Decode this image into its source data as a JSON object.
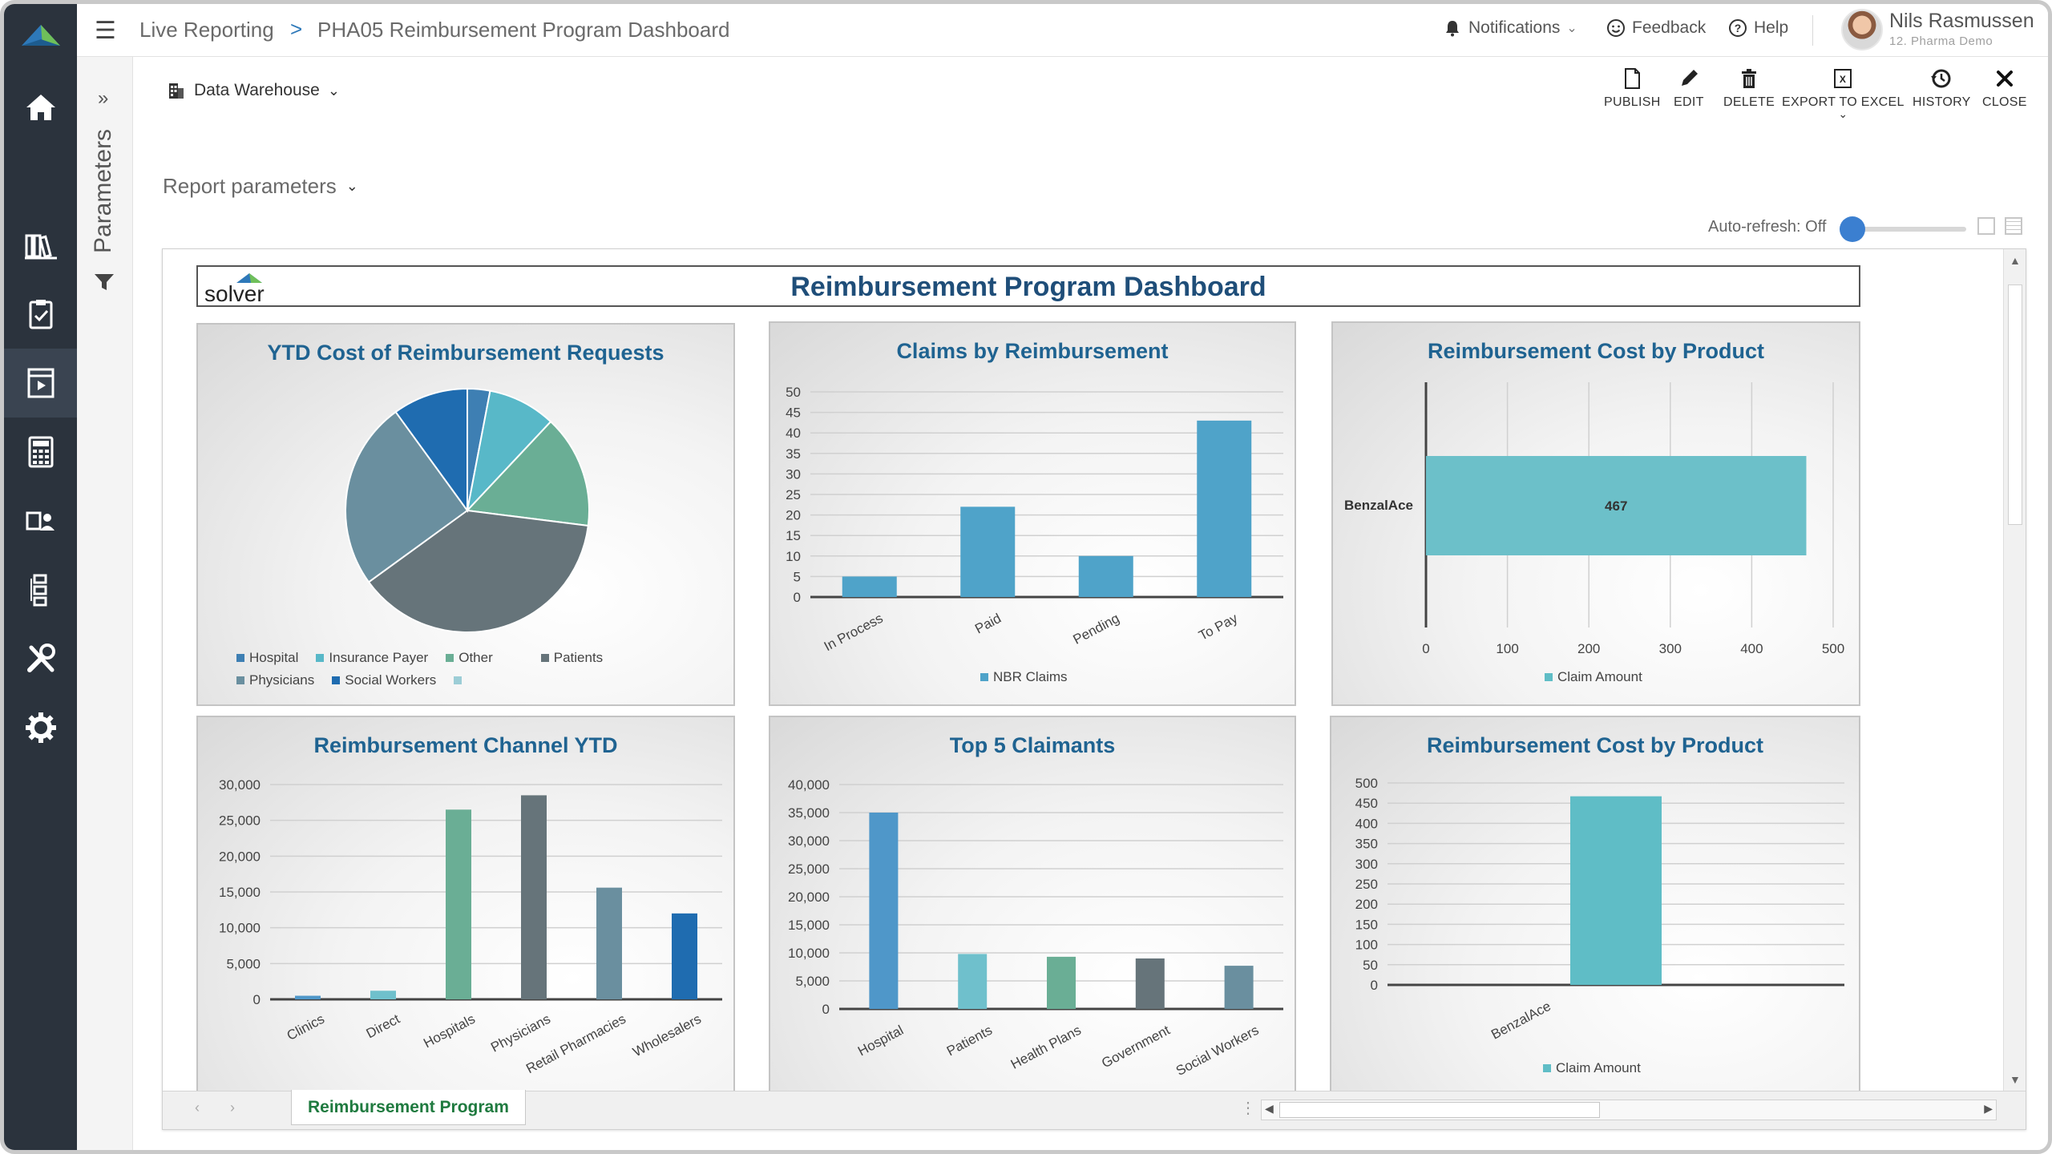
{
  "app": {
    "breadcrumb": [
      "Live Reporting",
      "PHA05 Reimbursement Program Dashboard"
    ],
    "breadcrumb_sep": ">",
    "notifications": "Notifications",
    "feedback": "Feedback",
    "help": "Help",
    "user_name": "Nils Rasmussen",
    "user_sub": "12. Pharma Demo"
  },
  "parameters": {
    "label": "Parameters"
  },
  "toolbar": {
    "data_source": "Data Warehouse",
    "publish": "PUBLISH",
    "edit": "EDIT",
    "delete": "DELETE",
    "export": "EXPORT TO EXCEL",
    "history": "HISTORY",
    "close": "CLOSE"
  },
  "report": {
    "params_label": "Report parameters",
    "autorefresh": "Auto-refresh: Off",
    "dashboard_title": "Reimbursement Program Dashboard",
    "logo_text": "solver",
    "sheet_tab": "Reimbursement Program"
  },
  "colors": {
    "nav_bg": "#2b333d",
    "accent_blue": "#2e79b9",
    "title_blue": "#1f4e79",
    "panel_title": "#1f6391",
    "sheet_green": "#1f7a3f"
  },
  "chart_data": [
    {
      "type": "pie",
      "title": "YTD Cost of Reimbursement Requests",
      "slices": [
        {
          "label": "Hospital",
          "value": 3,
          "color": "#3e7fb3"
        },
        {
          "label": "Insurance Payer",
          "value": 9,
          "color": "#58b8c8"
        },
        {
          "label": "Other",
          "value": 15,
          "color": "#6aae95"
        },
        {
          "label": "Patients",
          "value": 38,
          "color": "#66747a"
        },
        {
          "label": "Physicians",
          "value": 25,
          "color": "#6a8f9f"
        },
        {
          "label": "Social Workers",
          "value": 10,
          "color": "#1f6cb0"
        }
      ]
    },
    {
      "type": "bar",
      "title": "Claims by Reimbursement",
      "categories": [
        "In Process",
        "Paid",
        "Pending",
        "To Pay"
      ],
      "series": [
        {
          "name": "NBR Claims",
          "values": [
            5,
            22,
            10,
            43
          ]
        }
      ],
      "ylim": [
        0,
        50
      ],
      "yticks": [
        "0",
        "5",
        "10",
        "15",
        "20",
        "25",
        "30",
        "35",
        "40",
        "45",
        "50"
      ]
    },
    {
      "type": "bar",
      "orientation": "horizontal",
      "title": "Reimbursement Cost by Product",
      "categories": [
        "BenzalAce"
      ],
      "series": [
        {
          "name": "Claim Amount",
          "values": [
            467
          ]
        }
      ],
      "data_label": "467",
      "xlim": [
        0,
        500
      ],
      "xticks": [
        "0",
        "100",
        "200",
        "300",
        "400",
        "500"
      ]
    },
    {
      "type": "bar",
      "title": "Reimbursement Channel YTD",
      "categories": [
        "Clinics",
        "Direct",
        "Hospitals",
        "Physicians",
        "Retail Pharmacies",
        "Wholesalers"
      ],
      "values": [
        500,
        1200,
        26500,
        28500,
        15600,
        12000
      ],
      "colors": [
        "#4f97c9",
        "#6fc0cc",
        "#6aae95",
        "#66747a",
        "#6a8f9f",
        "#1f6cb0"
      ],
      "ylim": [
        0,
        30000
      ],
      "yticks": [
        "0",
        "5,000",
        "10,000",
        "15,000",
        "20,000",
        "25,000",
        "30,000"
      ]
    },
    {
      "type": "bar",
      "title": "Top 5 Claimants",
      "categories": [
        "Hospital",
        "Patients",
        "Health Plans",
        "Government",
        "Social Workers"
      ],
      "values": [
        35000,
        9800,
        9300,
        9000,
        7700
      ],
      "colors": [
        "#4f97c9",
        "#6fc0cc",
        "#6aae95",
        "#66747a",
        "#6a8f9f"
      ],
      "ylim": [
        0,
        40000
      ],
      "yticks": [
        "0",
        "5,000",
        "10,000",
        "15,000",
        "20,000",
        "25,000",
        "30,000",
        "35,000",
        "40,000"
      ]
    },
    {
      "type": "bar",
      "title": "Reimbursement Cost by Product",
      "categories": [
        "BenzalAce"
      ],
      "series": [
        {
          "name": "Claim Amount",
          "values": [
            467
          ]
        }
      ],
      "ylim": [
        0,
        500
      ],
      "yticks": [
        "0",
        "50",
        "100",
        "150",
        "200",
        "250",
        "300",
        "350",
        "400",
        "450",
        "500"
      ]
    }
  ]
}
